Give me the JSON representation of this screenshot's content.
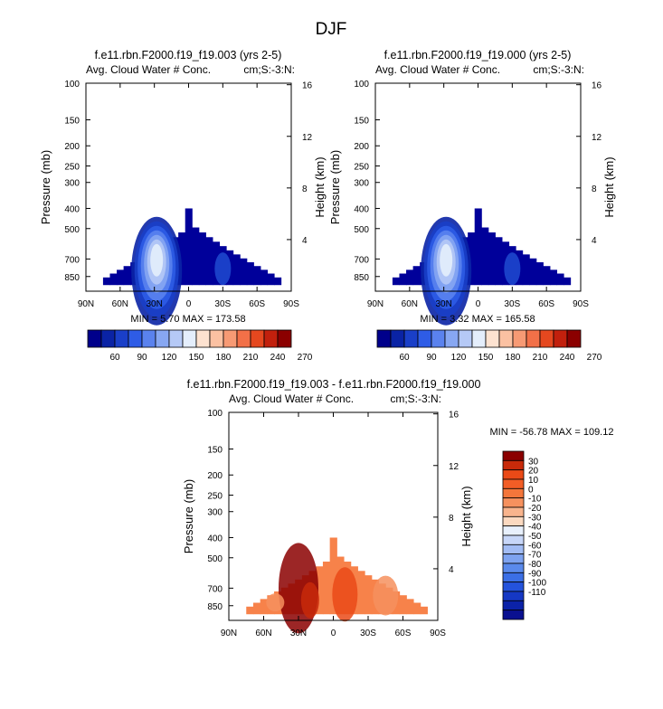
{
  "figure": {
    "season": "DJF"
  },
  "colors": {
    "abs_scale": [
      "#00008b",
      "#0a23a5",
      "#1a3fc8",
      "#2e5ce6",
      "#5a82ee",
      "#87a7f2",
      "#b5c9f6",
      "#e4eefc",
      "#fde2d0",
      "#fbc1a2",
      "#f79a74",
      "#f27048",
      "#e5481f",
      "#c2200d",
      "#8b0000"
    ],
    "diff_scale": [
      "#0a1090",
      "#0b22a8",
      "#1538c4",
      "#2453dc",
      "#3b6fe6",
      "#5a8aec",
      "#7ea3f0",
      "#a2bcf4",
      "#c7d6f8",
      "#e8f0fc",
      "#fbd9c0",
      "#f8b48d",
      "#f6915e",
      "#f4763b",
      "#f25d26",
      "#ea4a17",
      "#c82a0a",
      "#8b0000"
    ],
    "ocean_blue": "#00009a",
    "diff_mid": "#f7824a"
  },
  "chart_data": [
    {
      "type": "contour",
      "title": "f.e11.rbn.F2000.f19_f19.003 (yrs 2-5)",
      "left_label": "Avg. Cloud Water # Conc.",
      "right_label": "cm;S:-3:N:",
      "xlabel": "",
      "ylabel": "Pressure (mb)",
      "ylabel_right": "Height (km)",
      "x_ticks": [
        "90N",
        "60N",
        "30N",
        "0",
        "30S",
        "60S",
        "90S"
      ],
      "x_values": [
        90,
        60,
        30,
        0,
        -30,
        -60,
        -90
      ],
      "y_ticks": [
        100,
        150,
        200,
        250,
        300,
        400,
        500,
        700,
        850
      ],
      "y_range": [
        1000,
        100
      ],
      "height_ticks": [
        16,
        12,
        8,
        4
      ],
      "stats": "MIN =   5.70  MAX = 173.58",
      "min": 5.7,
      "max": 173.58,
      "colorbar_labels": [
        "60",
        "90",
        "120",
        "150",
        "180",
        "210",
        "240",
        "270"
      ]
    },
    {
      "type": "contour",
      "title": "f.e11.rbn.F2000.f19_f19.000 (yrs 2-5)",
      "left_label": "Avg. Cloud Water # Conc.",
      "right_label": "cm;S:-3:N:",
      "xlabel": "",
      "ylabel": "Pressure (mb)",
      "ylabel_right": "Height (km)",
      "x_ticks": [
        "90N",
        "60N",
        "30N",
        "0",
        "30S",
        "60S",
        "90S"
      ],
      "x_values": [
        90,
        60,
        30,
        0,
        -30,
        -60,
        -90
      ],
      "y_ticks": [
        100,
        150,
        200,
        250,
        300,
        400,
        500,
        700,
        850
      ],
      "y_range": [
        1000,
        100
      ],
      "height_ticks": [
        16,
        12,
        8,
        4
      ],
      "stats": "MIN =   3.32  MAX = 165.58",
      "min": 3.32,
      "max": 165.58,
      "colorbar_labels": [
        "60",
        "90",
        "120",
        "150",
        "180",
        "210",
        "240",
        "270"
      ]
    },
    {
      "type": "contour",
      "title": "f.e11.rbn.F2000.f19_f19.003 - f.e11.rbn.F2000.f19_f19.000",
      "left_label": "Avg. Cloud Water # Conc.",
      "right_label": "cm;S:-3:N:",
      "xlabel": "",
      "ylabel": "Pressure (mb)",
      "ylabel_right": "Height (km)",
      "x_ticks": [
        "90N",
        "60N",
        "30N",
        "0",
        "30S",
        "60S",
        "90S"
      ],
      "x_values": [
        90,
        60,
        30,
        0,
        -30,
        -60,
        -90
      ],
      "y_ticks": [
        100,
        150,
        200,
        250,
        300,
        400,
        500,
        700,
        850
      ],
      "y_range": [
        1000,
        100
      ],
      "height_ticks": [
        16,
        12,
        8,
        4
      ],
      "stats": "MIN = -56.78  MAX = 109.12",
      "min": -56.78,
      "max": 109.12,
      "colorbar_labels": [
        "30",
        "20",
        "10",
        "0",
        "-10",
        "-20",
        "-30",
        "-40",
        "-50",
        "-60",
        "-70",
        "-80",
        "-90",
        "-100",
        "-110"
      ]
    }
  ]
}
